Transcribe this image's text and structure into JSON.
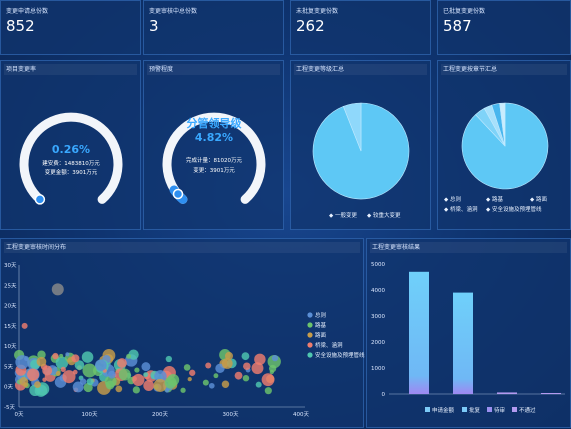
{
  "kpis": [
    {
      "title": "变更申请总份数",
      "value": "852"
    },
    {
      "title": "变更审核中总份数",
      "value": "3"
    },
    {
      "title": "未批复变更份数",
      "value": "262"
    },
    {
      "title": "已批复变更份数",
      "value": "587"
    }
  ],
  "gauge1": {
    "title": "项目变更率",
    "percent_text": "0.26%",
    "line1": "建安费：1483810万元",
    "line2": "变更金额：3901万元",
    "fraction": 0.26
  },
  "gauge2": {
    "title": "预警程度",
    "level": "分管领导级",
    "percent_text": "4.82%",
    "line1": "完成计量：81020万元",
    "line2": "变更：3901万元",
    "fraction": 4.82
  },
  "pie1": {
    "title": "工程变更等级汇总",
    "legend": [
      "一般变更",
      "较重大变更"
    ],
    "colors": [
      "#5ec8f5",
      "#8fd8fb"
    ],
    "values": [
      94,
      6
    ]
  },
  "pie2": {
    "title": "工程变更按章节汇总",
    "legend": [
      "总则",
      "路基",
      "路面",
      "桥梁、涵洞",
      "安全设施及预埋管线"
    ],
    "colors": [
      "#5ec8f5",
      "#7fd3f8",
      "#a7e0fb",
      "#48b6ee",
      "#c9ecfd"
    ],
    "values": [
      88,
      4,
      3,
      3,
      2
    ]
  },
  "scatter": {
    "title": "工程变更审核时间分布",
    "yticks": [
      "30天",
      "25天",
      "20天",
      "15天",
      "10天",
      "5天",
      "0天",
      "-5天"
    ],
    "xticks": [
      "0天",
      "100天",
      "200天",
      "300天",
      "400天"
    ],
    "legend": [
      "总则",
      "路基",
      "路面",
      "桥梁、涵洞",
      "安全设施及预埋管线"
    ],
    "colors": [
      "#5b8fd6",
      "#6cc36c",
      "#c79c4a",
      "#ee7d6e",
      "#4fc7b0"
    ]
  },
  "bar": {
    "title": "工程变更审核结果",
    "yticks": [
      "5000",
      "4000",
      "3000",
      "2000",
      "1000",
      "0"
    ],
    "legend": [
      "申请金额",
      "批复",
      "待审",
      "不通过"
    ],
    "colors": [
      "#7ccaf7",
      "#7ccaf7",
      "#9a8ff0",
      "#b39af0"
    ]
  },
  "chart_data": {
    "type": "bar",
    "title": "工程变更审核结果",
    "categories": [
      "申请金额",
      "批复",
      "待审",
      "不通过"
    ],
    "values": [
      4700,
      3900,
      60,
      0
    ],
    "ylim": [
      0,
      5000
    ]
  }
}
